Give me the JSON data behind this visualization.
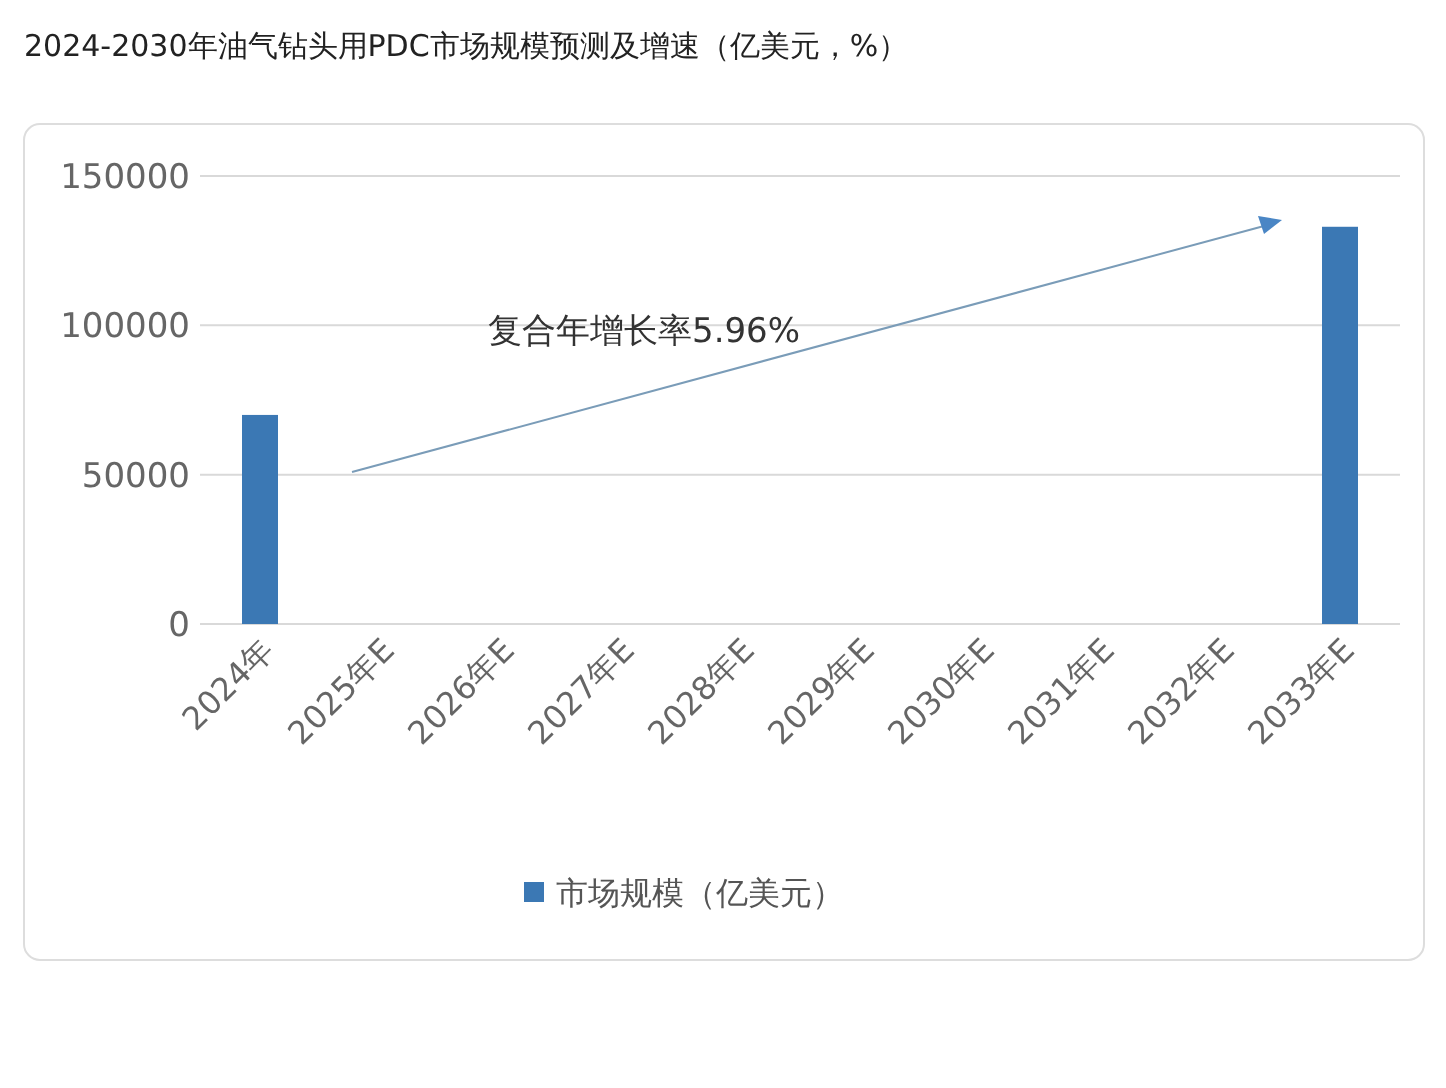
{
  "chart_data": {
    "type": "bar",
    "title": "2024-2030年油气钻头用PDC市场规模预测及增速（亿美元，%）",
    "categories": [
      "2024年",
      "2025年E",
      "2026年E",
      "2027年E",
      "2028年E",
      "2029年E",
      "2030年E",
      "2031年E",
      "2032年E",
      "2033年E"
    ],
    "series": [
      {
        "name": "市场规模（亿美元）",
        "color": "#3b78b4",
        "values": [
          70000,
          null,
          null,
          null,
          null,
          null,
          null,
          null,
          null,
          133000
        ]
      }
    ],
    "ylim": [
      0,
      150000
    ],
    "yticks": [
      0,
      50000,
      100000,
      150000
    ],
    "grid": "y",
    "legend": "bottom",
    "annotations": [
      "复合年增长率5.96%"
    ]
  }
}
